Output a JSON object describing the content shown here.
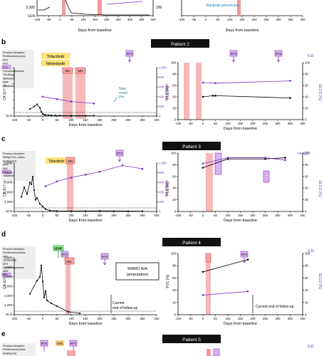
{
  "colors": {
    "ck": "#000000",
    "sixmwd": "#7b2fbf",
    "treatment_band": "#f29a9a",
    "treatment_line": "#d11f1f",
    "rtx_box": "#d9b3f0",
    "rtx_border": "#8a2fbf",
    "mtx_box": "#f4a6a6",
    "tofa_box": "#fbe27a",
    "nintedanib_box": "#fbe27a",
    "mmf_box": "#8ee08a",
    "ivig_box": "#f7c87a",
    "teal_text": "#1f7f9f",
    "banner_bg": "#111111",
    "banner_text": "#ffffff"
  },
  "common": {
    "days_label": "Days from baseline",
    "uln": "ULN",
    "ck_axis": "CK (U l⁻¹)",
    "smwd_axis": "6MWD (m)",
    "fvc_axis": "FVC (%)",
    "dlco_axis": "DLCO (%)",
    "x_ticks": [
      -100,
      -50,
      0,
      50,
      100,
      150,
      200,
      250,
      300,
      350,
      400
    ],
    "rtx": "RTX",
    "ild": "ILD",
    "prev_therapies_header": "Previous therapies:"
  },
  "panel_a": {
    "bacterial_pneumonia": "Bacterial pneumonia",
    "left_y_ticks": [
      "2,000"
    ],
    "right_y_ticks": [
      "200"
    ]
  },
  "panel_b": {
    "letter": "b",
    "title": "Patient 2",
    "prev_therapies": [
      "Previous therapies:",
      "Prednisolone pulses",
      "MTX",
      "IVIG",
      "RTX",
      "Cyclophosphamide",
      "Tacrolimus",
      "Nintedanib",
      "MMF",
      "Tofacitinib"
    ],
    "tofacitinib": "Tofacitinib",
    "nintedanib": "Nintedanib",
    "mtx": "Mtx",
    "new_onset_ph": [
      "New",
      "onset",
      "PH"
    ],
    "ck_y_ticks": [
      1000,
      2000,
      3000,
      4000,
      5000,
      6000,
      7000
    ],
    "ck_y_tick_labels": [
      "",
      "",
      "",
      "",
      "",
      "",
      ""
    ],
    "smwd_ticks": [
      "0",
      "200",
      "400",
      "600",
      "800",
      "1,000"
    ],
    "fvc_ticks": [
      "0",
      "20",
      "40",
      "60",
      "80",
      "100"
    ],
    "dlco_ticks": [
      "0",
      "20",
      "40",
      "60",
      "80",
      "100"
    ]
  },
  "panel_c": {
    "letter": "c",
    "title": "Patient 3",
    "ild_label": "no-ILD",
    "prev_therapies": [
      "Previous therapies:",
      "Methyl Pred. pulses",
      "Azathioprine",
      "MTX",
      "IVIG",
      "RTX",
      "Tofacitinib"
    ],
    "tofacitinib": "Tofacitinib",
    "mtx": "Mtx",
    "ck_y_ticks": [
      "0",
      "1,000",
      "2,000",
      "3,000",
      "4,000",
      "5,000"
    ],
    "smwd_ticks": [
      "0",
      "200",
      "400",
      "600",
      "800",
      "1,000"
    ],
    "fvc_ticks": [
      "0",
      "20",
      "40",
      "60",
      "80",
      "100"
    ],
    "dlco_ticks": [
      "0",
      "20",
      "40",
      "60",
      "80",
      "100"
    ]
  },
  "panel_d": {
    "letter": "d",
    "title": "Patient 4",
    "prev_therapies": [
      "Previous therapies:",
      "Prednisolone pulses",
      "IVIG",
      "Ciclosporine",
      "MTX",
      "Cyclophosphamide",
      "MMF",
      "RTX"
    ],
    "mmf": "MMF",
    "mtx": "Mtx",
    "smwd_na": [
      "6MWD N/A",
      "(amputation)"
    ],
    "current_end": [
      "Current",
      "end of follow-up"
    ],
    "current_end_right": "Current end of follow-up",
    "ck_y_ticks": [
      "0",
      "1,000",
      "2,000",
      "3,000",
      "4,000",
      "5,000",
      "6,000"
    ],
    "fvc_ticks": [
      "0",
      "20",
      "40",
      "60",
      "80",
      "100"
    ],
    "dlco_ticks": [
      "0",
      "20",
      "40",
      "60",
      "80",
      "100"
    ]
  },
  "panel_e": {
    "letter": "e",
    "title": "Patient 5",
    "ivig": "IVIG",
    "prev_therapies": [
      "Previous therapies:",
      "Prednisolone pulses",
      "Azathioprine",
      "MTX"
    ]
  },
  "chart_data": [
    {
      "id": "p2-left",
      "type": "line",
      "xlabel": "Days from baseline",
      "ylabel": "CK (U l⁻¹)",
      "y2label": "6MWD (m)",
      "xlim": [
        -100,
        400
      ],
      "ylim": [
        0,
        7000
      ],
      "y2lim": [
        0,
        1000
      ],
      "series": [
        {
          "name": "CK",
          "axis": "left",
          "x": [
            -45,
            -30,
            -20,
            -10,
            -5,
            0,
            5,
            10,
            20,
            30,
            45,
            60,
            100,
            150,
            180
          ],
          "y": [
            1000,
            1400,
            1700,
            1200,
            600,
            300,
            200,
            150,
            120,
            100,
            90,
            80,
            70,
            60,
            50
          ]
        },
        {
          "name": "6MWD",
          "axis": "right",
          "x": [
            0,
            50,
            100,
            180
          ],
          "y": [
            400,
            350,
            300,
            260
          ]
        }
      ]
    },
    {
      "id": "p2-right",
      "type": "line",
      "xlabel": "Days from baseline",
      "ylabel": "FVC (%)",
      "y2label": "DLCO (%)",
      "xlim": [
        -100,
        400
      ],
      "ylim": [
        0,
        100
      ],
      "y2lim": [
        0,
        100
      ],
      "series": [
        {
          "name": "FVC",
          "axis": "left",
          "x": [
            0,
            40,
            50,
            350
          ],
          "y": [
            40,
            42,
            42,
            38
          ]
        },
        {
          "name": "DLCO",
          "axis": "right",
          "x": [
            0,
            50,
            350
          ],
          "y": [
            65,
            64,
            68
          ]
        }
      ]
    },
    {
      "id": "p3-left",
      "type": "line",
      "xlabel": "Days from baseline",
      "ylabel": "CK (U l⁻¹)",
      "y2label": "6MWD (m)",
      "xlim": [
        -100,
        400
      ],
      "ylim": [
        0,
        5000
      ],
      "y2lim": [
        0,
        1000
      ],
      "series": [
        {
          "name": "CK",
          "axis": "left",
          "x": [
            -75,
            -65,
            -55,
            -45,
            -40,
            -35,
            -30,
            -25,
            -20,
            -10,
            0,
            10,
            25,
            50,
            100,
            150,
            200,
            250,
            300,
            350
          ],
          "y": [
            1500,
            2500,
            1800,
            3000,
            2800,
            3600,
            2200,
            1200,
            1400,
            800,
            500,
            250,
            100,
            50,
            40,
            50,
            60,
            50,
            40,
            30
          ]
        },
        {
          "name": "6MWD",
          "axis": "right",
          "x": [
            10,
            50,
            100,
            150,
            200,
            280,
            350
          ],
          "y": [
            520,
            620,
            700,
            760,
            820,
            950,
            880
          ]
        }
      ]
    },
    {
      "id": "p3-right",
      "type": "line",
      "xlabel": "Days from baseline",
      "ylabel": "FVC (%)",
      "y2label": "DLCO (%)",
      "xlim": [
        -100,
        400
      ],
      "ylim": [
        0,
        100
      ],
      "y2lim": [
        0,
        100
      ],
      "series": [
        {
          "name": "FVC",
          "axis": "left",
          "x": [
            0,
            100,
            250,
            330
          ],
          "y": [
            75,
            90,
            90,
            92
          ]
        },
        {
          "name": "DLCO",
          "axis": "right",
          "x": [
            0,
            100,
            250,
            330
          ],
          "y": [
            82,
            92,
            92,
            88
          ]
        }
      ]
    },
    {
      "id": "p4-left",
      "type": "line",
      "xlabel": "Days from baseline",
      "ylabel": "CK (U l⁻¹)",
      "xlim": [
        -100,
        400
      ],
      "ylim": [
        0,
        6000
      ],
      "series": [
        {
          "name": "CK",
          "axis": "left",
          "x": [
            -45,
            -20,
            -10,
            -5,
            0,
            5,
            10,
            15,
            30,
            50,
            90,
            130
          ],
          "y": [
            2200,
            3600,
            4000,
            5200,
            3500,
            1800,
            2500,
            1500,
            1200,
            900,
            300,
            150
          ]
        }
      ]
    },
    {
      "id": "p4-right",
      "type": "line",
      "xlabel": "Days from baseline",
      "ylabel": "FVC (%)",
      "y2label": "DLCO (%)",
      "xlim": [
        -100,
        400
      ],
      "ylim": [
        0,
        100
      ],
      "y2lim": [
        0,
        100
      ],
      "series": [
        {
          "name": "FVC",
          "axis": "left",
          "x": [
            0,
            180
          ],
          "y": [
            70,
            90
          ]
        },
        {
          "name": "DLCO",
          "axis": "right",
          "x": [
            0,
            180
          ],
          "y": [
            32,
            38
          ]
        }
      ]
    }
  ]
}
